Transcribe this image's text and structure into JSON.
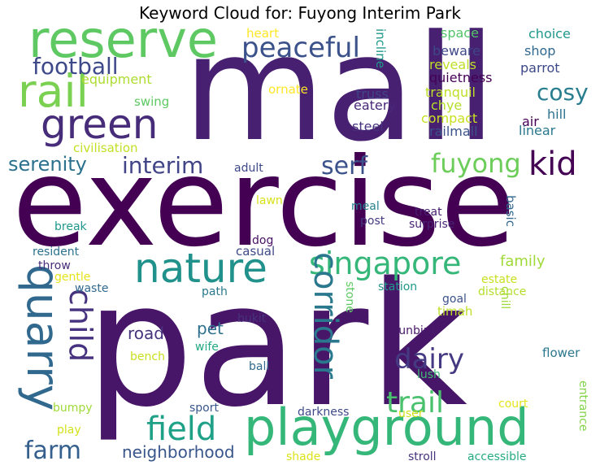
{
  "title": "Keyword Cloud for: Fuyong Interim Park",
  "words": [
    {
      "text": "exercise",
      "color": "#440154"
    },
    {
      "text": "park",
      "color": "#481668"
    },
    {
      "text": "mall",
      "color": "#482071"
    },
    {
      "text": "playground",
      "color": "#35b779"
    },
    {
      "text": "reserve",
      "color": "#5ec962"
    },
    {
      "text": "nature",
      "color": "#21918c"
    },
    {
      "text": "green",
      "color": "#472c7a"
    },
    {
      "text": "rail",
      "color": "#7ad151"
    },
    {
      "text": "quarry",
      "color": "#31688e"
    },
    {
      "text": "singapore",
      "color": "#35b779"
    },
    {
      "text": "peaceful",
      "color": "#3b528b"
    },
    {
      "text": "football",
      "color": "#3e4989"
    },
    {
      "text": "field",
      "color": "#1fa187"
    },
    {
      "text": "corridor",
      "color": "#2a788e"
    },
    {
      "text": "trail",
      "color": "#4ac16d"
    },
    {
      "text": "dairy",
      "color": "#443a83"
    },
    {
      "text": "kid",
      "color": "#440154"
    },
    {
      "text": "fuyong",
      "color": "#6ccd5a"
    },
    {
      "text": "serf",
      "color": "#3b528b"
    },
    {
      "text": "interim",
      "color": "#414487"
    },
    {
      "text": "serenity",
      "color": "#2c728e"
    },
    {
      "text": "cosy",
      "color": "#287d8e"
    },
    {
      "text": "child",
      "color": "#46327e"
    },
    {
      "text": "farm",
      "color": "#355f8d"
    },
    {
      "text": "neighborhood",
      "color": "#39568c"
    },
    {
      "text": "family",
      "color": "#a0da39"
    },
    {
      "text": "road",
      "color": "#46337e"
    },
    {
      "text": "pet",
      "color": "#2d708e"
    },
    {
      "text": "equipment",
      "color": "#addc30"
    },
    {
      "text": "heart",
      "color": "#fde725"
    },
    {
      "text": "swing",
      "color": "#5ec962"
    },
    {
      "text": "ornate",
      "color": "#fde725"
    },
    {
      "text": "civilisation",
      "color": "#c2df23"
    },
    {
      "text": "space",
      "color": "#52c569"
    },
    {
      "text": "choice",
      "color": "#1f988b"
    },
    {
      "text": "beware",
      "color": "#3f4788"
    },
    {
      "text": "shop",
      "color": "#31688e"
    },
    {
      "text": "reveals",
      "color": "#bddf26"
    },
    {
      "text": "parrot",
      "color": "#3e4989"
    },
    {
      "text": "quietness",
      "color": "#440154"
    },
    {
      "text": "truss",
      "color": "#414487"
    },
    {
      "text": "tranquil",
      "color": "#bddf26"
    },
    {
      "text": "eatery",
      "color": "#482878"
    },
    {
      "text": "chye",
      "color": "#b5de2b"
    },
    {
      "text": "compact",
      "color": "#c8e020"
    },
    {
      "text": "steel",
      "color": "#46327e"
    },
    {
      "text": "railmall",
      "color": "#3b528b"
    },
    {
      "text": "hill",
      "color": "#2c728e"
    },
    {
      "text": "air",
      "color": "#440154"
    },
    {
      "text": "linear",
      "color": "#2a788e"
    },
    {
      "text": "incline",
      "color": "#1f988b"
    },
    {
      "text": "adult",
      "color": "#3e4989"
    },
    {
      "text": "lawn",
      "color": "#d8e219"
    },
    {
      "text": "meal",
      "color": "#26828e"
    },
    {
      "text": "treat",
      "color": "#481f70"
    },
    {
      "text": "post",
      "color": "#443983"
    },
    {
      "text": "surprise",
      "color": "#482475"
    },
    {
      "text": "basic",
      "color": "#31688e"
    },
    {
      "text": "break",
      "color": "#1f988b"
    },
    {
      "text": "dog",
      "color": "#471063"
    },
    {
      "text": "casual",
      "color": "#3e4989"
    },
    {
      "text": "resident",
      "color": "#2c728e"
    },
    {
      "text": "throw",
      "color": "#472d7b"
    },
    {
      "text": "gentle",
      "color": "#e5e419"
    },
    {
      "text": "waste",
      "color": "#31688e"
    },
    {
      "text": "path",
      "color": "#2a788e"
    },
    {
      "text": "estate",
      "color": "#c8e020"
    },
    {
      "text": "distance",
      "color": "#b5de2b"
    },
    {
      "text": "chill",
      "color": "#a0da39"
    },
    {
      "text": "station",
      "color": "#1f988b"
    },
    {
      "text": "goal",
      "color": "#3b528b"
    },
    {
      "text": "stone",
      "color": "#5ec962"
    },
    {
      "text": "timah",
      "color": "#bddf26"
    },
    {
      "text": "bukit",
      "color": "#46327e"
    },
    {
      "text": "sunbird",
      "color": "#48186a"
    },
    {
      "text": "bench",
      "color": "#c8e020"
    },
    {
      "text": "wife",
      "color": "#22a884"
    },
    {
      "text": "flower",
      "color": "#2a788e"
    },
    {
      "text": "ball",
      "color": "#31688e"
    },
    {
      "text": "lush",
      "color": "#3dbc74"
    },
    {
      "text": "court",
      "color": "#e5e419"
    },
    {
      "text": "bumpy",
      "color": "#a0da39"
    },
    {
      "text": "sport",
      "color": "#39568c"
    },
    {
      "text": "darkness",
      "color": "#3e4989"
    },
    {
      "text": "user",
      "color": "#d0e11c"
    },
    {
      "text": "entrance",
      "color": "#84d44b"
    },
    {
      "text": "play",
      "color": "#d2e21b"
    },
    {
      "text": "shade",
      "color": "#dde318"
    },
    {
      "text": "stroll",
      "color": "#46337e"
    },
    {
      "text": "accessible",
      "color": "#25ab82"
    }
  ]
}
